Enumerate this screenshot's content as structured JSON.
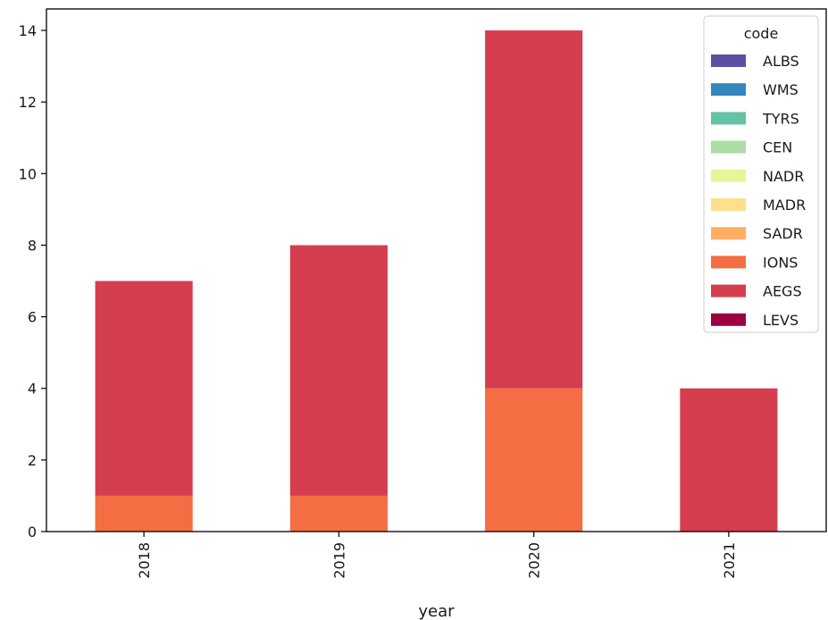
{
  "chart_data": {
    "type": "bar",
    "stacked": true,
    "xlabel": "year",
    "ylabel": "",
    "categories": [
      "2018",
      "2019",
      "2020",
      "2021"
    ],
    "ylim": [
      0,
      14.6
    ],
    "yticks": [
      "0",
      "2",
      "4",
      "6",
      "8",
      "10",
      "12",
      "14"
    ],
    "legend": {
      "title": "code",
      "placement": "top-right",
      "entries": [
        {
          "name": "ALBS",
          "color": "#5e4fa2"
        },
        {
          "name": "WMS",
          "color": "#3288bd"
        },
        {
          "name": "TYRS",
          "color": "#66c2a5"
        },
        {
          "name": "CEN",
          "color": "#abdda4"
        },
        {
          "name": "NADR",
          "color": "#e6f598"
        },
        {
          "name": "MADR",
          "color": "#fee08b"
        },
        {
          "name": "SADR",
          "color": "#fdae61"
        },
        {
          "name": "IONS",
          "color": "#f46d43"
        },
        {
          "name": "AEGS",
          "color": "#d53e4f"
        },
        {
          "name": "LEVS",
          "color": "#9e0142"
        }
      ]
    },
    "series": [
      {
        "name": "ALBS",
        "color": "#5e4fa2",
        "values": [
          0,
          0,
          0,
          0
        ]
      },
      {
        "name": "WMS",
        "color": "#3288bd",
        "values": [
          0,
          0,
          0,
          0
        ]
      },
      {
        "name": "TYRS",
        "color": "#66c2a5",
        "values": [
          0,
          0,
          0,
          0
        ]
      },
      {
        "name": "CEN",
        "color": "#abdda4",
        "values": [
          0,
          0,
          0,
          0
        ]
      },
      {
        "name": "NADR",
        "color": "#e6f598",
        "values": [
          0,
          0,
          0,
          0
        ]
      },
      {
        "name": "MADR",
        "color": "#fee08b",
        "values": [
          0,
          0,
          0,
          0
        ]
      },
      {
        "name": "SADR",
        "color": "#fdae61",
        "values": [
          0,
          0,
          0,
          0
        ]
      },
      {
        "name": "IONS",
        "color": "#f46d43",
        "values": [
          1,
          1,
          4,
          0
        ]
      },
      {
        "name": "AEGS",
        "color": "#d53e4f",
        "values": [
          6,
          7,
          10,
          4
        ]
      },
      {
        "name": "LEVS",
        "color": "#9e0142",
        "values": [
          0,
          0,
          0,
          0
        ]
      }
    ]
  }
}
